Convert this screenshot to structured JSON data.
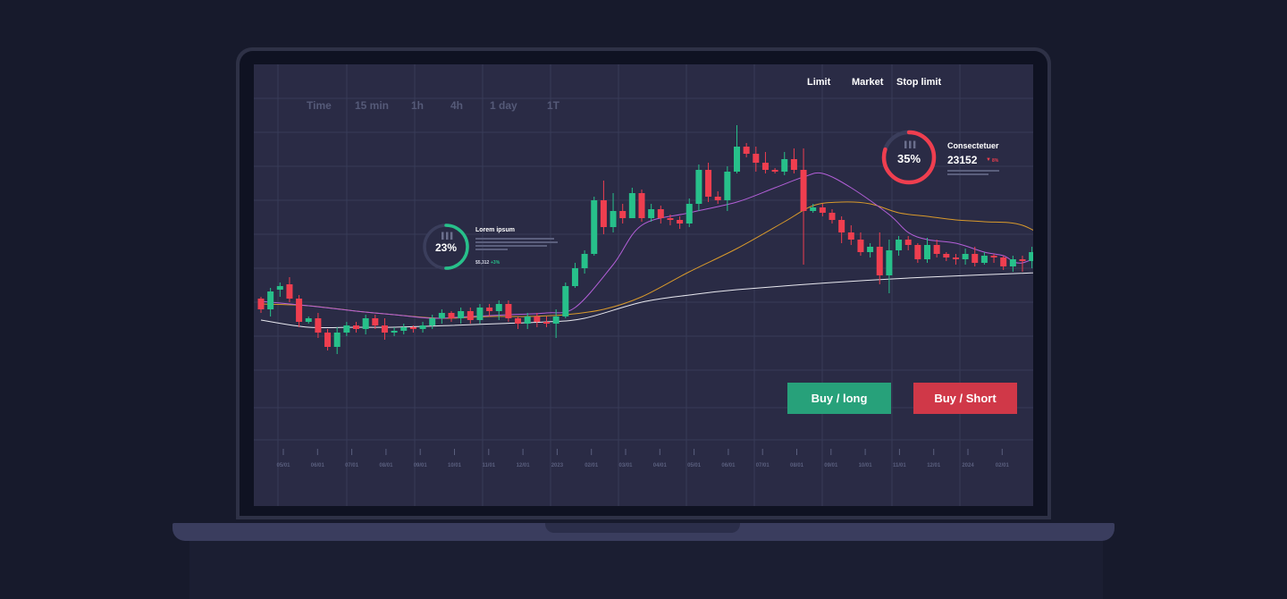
{
  "timeframes": [
    "Time",
    "15 min",
    "1h",
    "4h",
    "1 day",
    "1T"
  ],
  "order_types": [
    "Limit",
    "Market",
    "Stop limit"
  ],
  "buttons": {
    "buy_long": "Buy / long",
    "buy_short": "Buy / Short"
  },
  "widget_left": {
    "percent": "23%",
    "progress": 0.23,
    "title": "Lorem ipsum",
    "value": "$5,312",
    "change": "+3%",
    "icon": "bar-chart-icon",
    "accent": "#27c08a"
  },
  "widget_right": {
    "percent": "35%",
    "progress": 0.35,
    "title": "Consectetuer",
    "value": "23152",
    "change": "8%",
    "icon": "bar-chart-icon",
    "accent": "#ef3e4f"
  },
  "colors": {
    "up": "#27c08a",
    "down": "#ef3e4f",
    "ma_fast": "#b35fd8",
    "ma_mid": "#d99a2b",
    "ma_slow": "#e9e9f0"
  },
  "x_axis": [
    "05/01",
    "06/01",
    "07/01",
    "08/01",
    "09/01",
    "10/01",
    "11/01",
    "12/01",
    "2023",
    "02/01",
    "03/01",
    "04/01",
    "05/01",
    "06/01",
    "07/01",
    "08/01",
    "09/01",
    "10/01",
    "11/01",
    "12/01",
    "2024",
    "02/01"
  ],
  "chart_data": {
    "type": "candlestick",
    "y_direction": "unlabeled price axis, 0 = bottom of plot",
    "candles": [
      [
        232,
        220,
        234,
        216
      ],
      [
        220,
        240,
        244,
        212
      ],
      [
        242,
        246,
        250,
        234
      ],
      [
        248,
        232,
        256,
        228
      ],
      [
        232,
        206,
        236,
        200
      ],
      [
        206,
        210,
        212,
        204
      ],
      [
        210,
        194,
        216,
        188
      ],
      [
        194,
        178,
        198,
        174
      ],
      [
        178,
        194,
        200,
        170
      ],
      [
        194,
        202,
        206,
        190
      ],
      [
        202,
        198,
        206,
        194
      ],
      [
        198,
        210,
        214,
        192
      ],
      [
        210,
        202,
        214,
        198
      ],
      [
        202,
        194,
        210,
        186
      ],
      [
        194,
        196,
        200,
        190
      ],
      [
        196,
        200,
        204,
        192
      ],
      [
        200,
        198,
        202,
        194
      ],
      [
        198,
        202,
        206,
        194
      ],
      [
        202,
        210,
        214,
        198
      ],
      [
        210,
        216,
        220,
        204
      ],
      [
        216,
        210,
        218,
        206
      ],
      [
        210,
        218,
        222,
        204
      ],
      [
        218,
        208,
        222,
        204
      ],
      [
        208,
        222,
        226,
        204
      ],
      [
        222,
        218,
        226,
        212
      ],
      [
        218,
        226,
        230,
        208
      ],
      [
        226,
        210,
        230,
        206
      ],
      [
        210,
        204,
        212,
        198
      ],
      [
        204,
        212,
        216,
        198
      ],
      [
        212,
        206,
        216,
        200
      ],
      [
        206,
        204,
        212,
        200
      ],
      [
        204,
        212,
        220,
        188
      ],
      [
        212,
        246,
        250,
        210
      ],
      [
        246,
        266,
        272,
        244
      ],
      [
        266,
        282,
        286,
        260
      ],
      [
        282,
        342,
        346,
        280
      ],
      [
        342,
        312,
        364,
        304
      ],
      [
        312,
        330,
        350,
        306
      ],
      [
        330,
        322,
        338,
        316
      ],
      [
        322,
        350,
        356,
        326
      ],
      [
        350,
        322,
        354,
        318
      ],
      [
        322,
        332,
        338,
        318
      ],
      [
        332,
        322,
        336,
        316
      ],
      [
        322,
        320,
        326,
        314
      ],
      [
        320,
        316,
        324,
        310
      ],
      [
        316,
        338,
        344,
        312
      ],
      [
        338,
        376,
        382,
        330
      ],
      [
        376,
        346,
        384,
        340
      ],
      [
        346,
        342,
        352,
        338
      ],
      [
        342,
        374,
        380,
        330
      ],
      [
        374,
        402,
        426,
        372
      ],
      [
        402,
        394,
        406,
        390
      ],
      [
        394,
        384,
        402,
        374
      ],
      [
        384,
        376,
        396,
        372
      ],
      [
        376,
        374,
        378,
        372
      ],
      [
        374,
        388,
        396,
        370
      ],
      [
        388,
        376,
        400,
        372
      ],
      [
        376,
        330,
        400,
        270
      ],
      [
        330,
        334,
        338,
        328
      ],
      [
        334,
        328,
        338,
        324
      ],
      [
        328,
        320,
        332,
        316
      ],
      [
        320,
        306,
        324,
        294
      ],
      [
        306,
        298,
        314,
        292
      ],
      [
        298,
        284,
        306,
        280
      ],
      [
        284,
        290,
        294,
        278
      ],
      [
        290,
        258,
        306,
        248
      ],
      [
        258,
        286,
        298,
        238
      ],
      [
        286,
        298,
        302,
        280
      ],
      [
        298,
        292,
        302,
        286
      ],
      [
        292,
        276,
        294,
        272
      ],
      [
        276,
        292,
        300,
        272
      ],
      [
        292,
        282,
        298,
        278
      ],
      [
        282,
        278,
        284,
        274
      ],
      [
        278,
        276,
        282,
        270
      ],
      [
        276,
        282,
        288,
        270
      ],
      [
        282,
        272,
        290,
        268
      ],
      [
        272,
        280,
        284,
        270
      ],
      [
        280,
        278,
        282,
        272
      ],
      [
        278,
        268,
        280,
        264
      ],
      [
        268,
        276,
        280,
        262
      ],
      [
        276,
        274,
        280,
        262
      ],
      [
        274,
        284,
        290,
        266
      ],
      [
        284,
        312,
        320,
        278
      ]
    ],
    "ma_fast": [
      [
        0,
        229
      ],
      [
        5,
        224
      ],
      [
        10,
        218
      ],
      [
        14,
        214
      ],
      [
        18,
        210
      ],
      [
        22,
        212
      ],
      [
        26,
        214
      ],
      [
        30,
        216
      ],
      [
        33,
        222
      ],
      [
        37,
        270
      ],
      [
        40,
        314
      ],
      [
        45,
        328
      ],
      [
        50,
        340
      ],
      [
        54,
        356
      ],
      [
        57,
        368
      ],
      [
        59,
        372
      ],
      [
        62,
        356
      ],
      [
        66,
        326
      ],
      [
        68,
        306
      ],
      [
        70,
        298
      ],
      [
        73,
        294
      ],
      [
        76,
        284
      ],
      [
        78,
        280
      ],
      [
        80,
        272
      ],
      [
        84,
        292
      ]
    ],
    "ma_mid": [
      [
        0,
        226
      ],
      [
        5,
        224
      ],
      [
        10,
        218
      ],
      [
        14,
        214
      ],
      [
        19,
        210
      ],
      [
        24,
        212
      ],
      [
        28,
        212
      ],
      [
        32,
        214
      ],
      [
        36,
        220
      ],
      [
        40,
        234
      ],
      [
        45,
        262
      ],
      [
        50,
        288
      ],
      [
        55,
        318
      ],
      [
        58,
        336
      ],
      [
        61,
        340
      ],
      [
        64,
        338
      ],
      [
        67,
        328
      ],
      [
        70,
        324
      ],
      [
        73,
        320
      ],
      [
        76,
        318
      ],
      [
        80,
        314
      ],
      [
        84,
        290
      ]
    ],
    "ma_slow": [
      [
        0,
        208
      ],
      [
        5,
        200
      ],
      [
        10,
        200
      ],
      [
        14,
        200
      ],
      [
        20,
        202
      ],
      [
        25,
        204
      ],
      [
        30,
        206
      ],
      [
        34,
        210
      ],
      [
        40,
        228
      ],
      [
        45,
        236
      ],
      [
        50,
        242
      ],
      [
        60,
        250
      ],
      [
        70,
        256
      ],
      [
        84,
        262
      ]
    ]
  }
}
